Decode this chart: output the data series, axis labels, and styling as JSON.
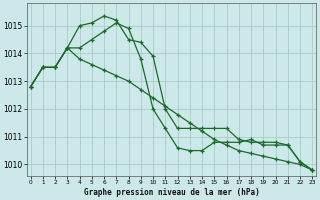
{
  "title": "Graphe pression niveau de la mer (hPa)",
  "bg_color": "#cce8e8",
  "grid_color": "#aacccc",
  "line_color": "#1a6b2a",
  "xlim": [
    -0.3,
    23.3
  ],
  "ylim": [
    1009.6,
    1015.8
  ],
  "yticks": [
    1010,
    1011,
    1012,
    1013,
    1014,
    1015
  ],
  "xticks": [
    0,
    1,
    2,
    3,
    4,
    5,
    6,
    7,
    8,
    9,
    10,
    11,
    12,
    13,
    14,
    15,
    16,
    17,
    18,
    19,
    20,
    21,
    22,
    23
  ],
  "series1": [
    1012.8,
    1013.5,
    1013.5,
    1014.2,
    1015.0,
    1015.1,
    1015.35,
    1015.2,
    1014.5,
    1014.4,
    1013.9,
    1012.0,
    1011.3,
    1011.3,
    1011.3,
    1011.3,
    1011.3,
    1010.9,
    1010.8,
    1010.8,
    1010.8,
    1010.7,
    1010.1,
    1009.8
  ],
  "series2": [
    1012.8,
    1013.5,
    1013.5,
    1014.2,
    1014.2,
    1014.5,
    1014.8,
    1015.1,
    1014.9,
    1013.8,
    1012.0,
    1011.3,
    1010.6,
    1010.5,
    1010.5,
    1010.8,
    1010.8,
    1010.8,
    1010.9,
    1010.7,
    1010.7,
    1010.7,
    1010.1,
    1009.8
  ],
  "series3": [
    1012.8,
    1013.5,
    1013.5,
    1014.2,
    1013.8,
    1013.6,
    1013.4,
    1013.2,
    1013.0,
    1012.7,
    1012.4,
    1012.1,
    1011.8,
    1011.5,
    1011.2,
    1010.9,
    1010.7,
    1010.5,
    1010.4,
    1010.3,
    1010.2,
    1010.1,
    1010.0,
    1009.8
  ]
}
